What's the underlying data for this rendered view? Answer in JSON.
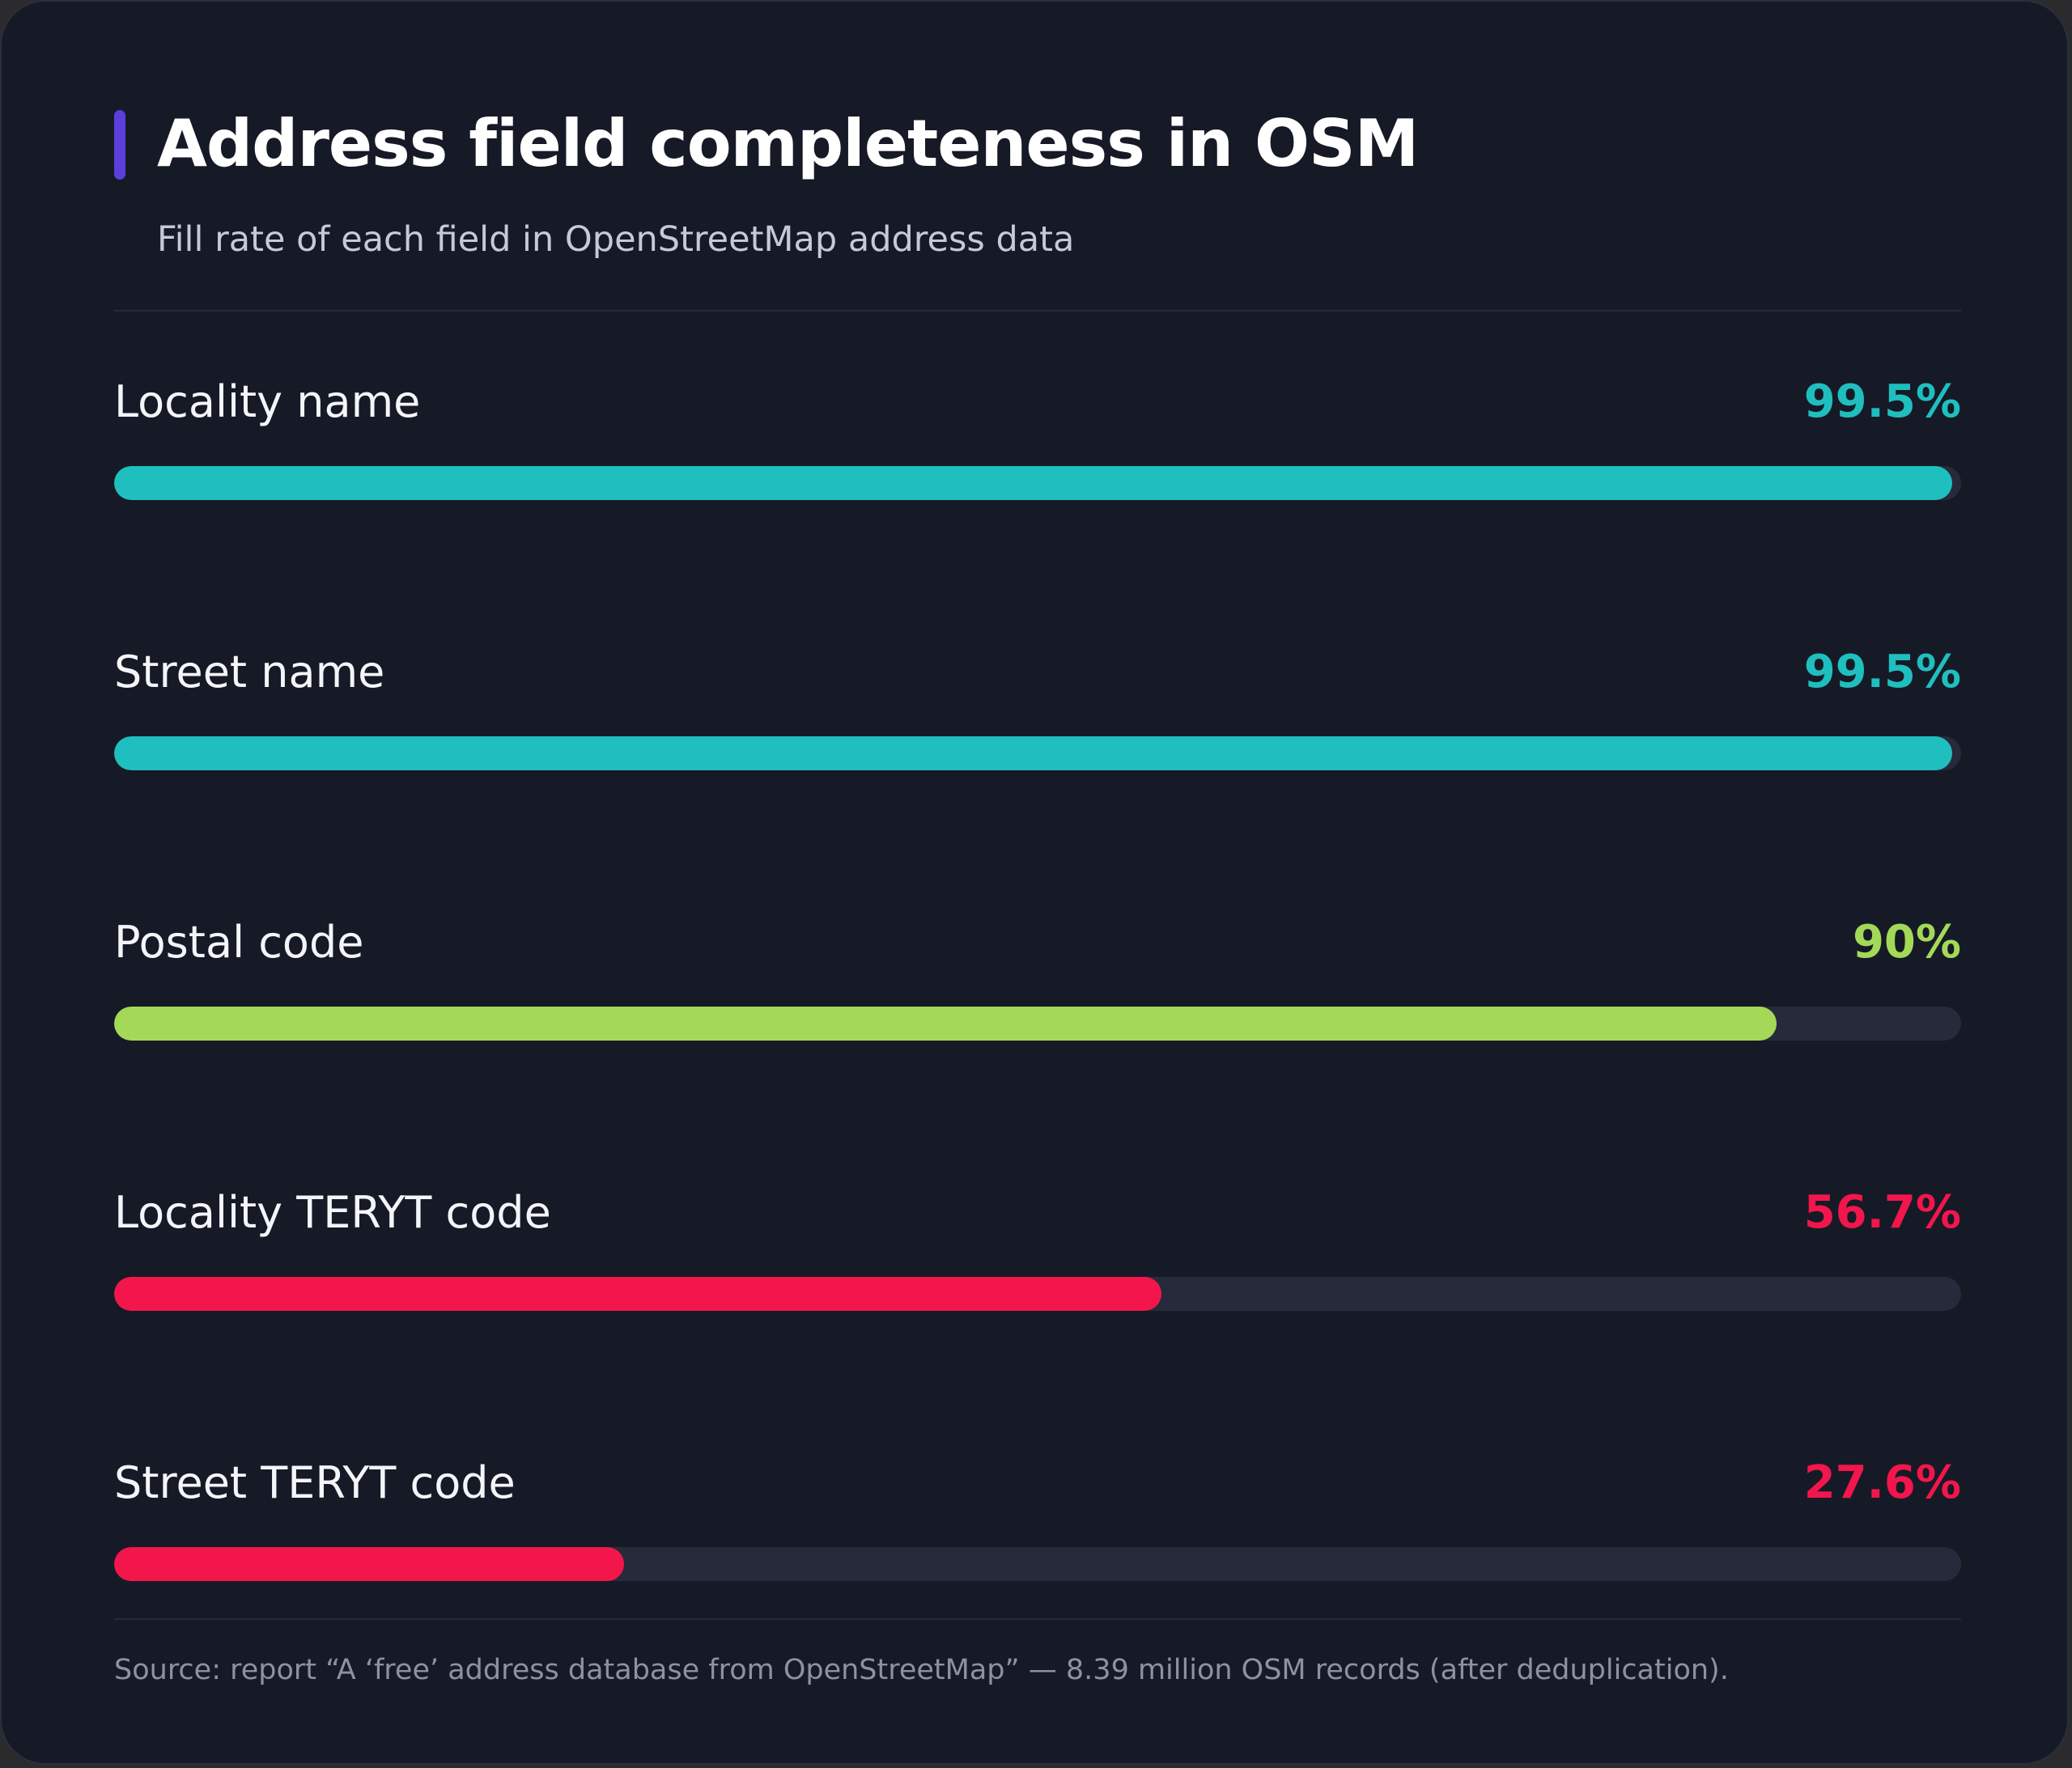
{
  "chart_data": {
    "type": "bar",
    "orientation": "horizontal",
    "title": "Address field completeness in OSM",
    "subtitle": "Fill rate of each field in OpenStreetMap address data",
    "xlim": [
      0,
      100
    ],
    "unit": "%",
    "categories": [
      "Locality name",
      "Street name",
      "Postal code",
      "Locality TERYT code",
      "Street TERYT code"
    ],
    "values": [
      99.5,
      99.5,
      90,
      56.7,
      27.6
    ],
    "value_labels": [
      "99.5%",
      "99.5%",
      "90%",
      "56.7%",
      "27.6%"
    ],
    "bar_colors": [
      "#1fbfbf",
      "#1fbfbf",
      "#a3d957",
      "#f2164c",
      "#f2164c"
    ],
    "track_color": "#262a3b",
    "source": "Source: report “A ‘free’ address database from OpenStreetMap” — 8.39 million OSM records (after deduplication)."
  },
  "colors": {
    "accent": "#5b3fdc",
    "background": "#161a26"
  }
}
